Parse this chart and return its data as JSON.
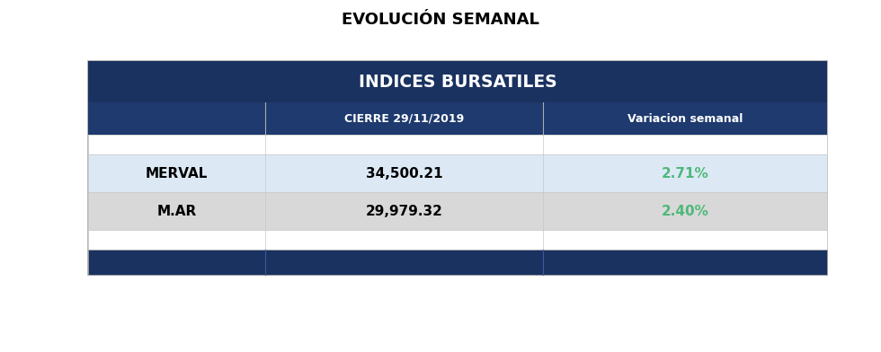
{
  "title": "EVOLUCIÓN SEMANAL",
  "table_title": "INDICES BURSATILES",
  "col_headers": [
    "CIERRE 29/11/2019",
    "Variacion semanal"
  ],
  "rows": [
    {
      "index": "MERVAL",
      "cierre": "34,500.21",
      "variacion": "2.71%"
    },
    {
      "index": "M.AR",
      "cierre": "29,979.32",
      "variacion": "2.40%"
    }
  ],
  "colors": {
    "dark_navy": "#1a3260",
    "col_header_bg": "#1e3a6e",
    "row0_bg": "#dce9f5",
    "row1_bg": "#d8d8d8",
    "footer_bg": "#1a3260",
    "white": "#ffffff",
    "green": "#4db87a",
    "black": "#000000",
    "border": "#aaaaaa",
    "light_border": "#c8c8c8"
  },
  "fig_w": 9.8,
  "fig_h": 3.92,
  "dpi": 100
}
